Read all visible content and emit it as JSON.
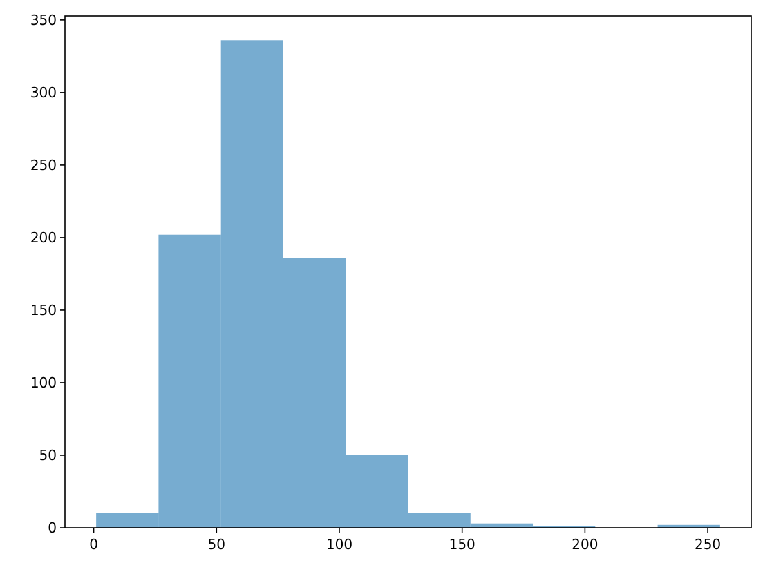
{
  "chart_data": {
    "type": "bar",
    "subtype": "histogram",
    "title": "",
    "xlabel": "",
    "ylabel": "",
    "bins": [
      {
        "start": 1.0,
        "end": 26.4,
        "count": 10
      },
      {
        "start": 26.4,
        "end": 51.8,
        "count": 202
      },
      {
        "start": 51.8,
        "end": 77.2,
        "count": 336
      },
      {
        "start": 77.2,
        "end": 102.6,
        "count": 186
      },
      {
        "start": 102.6,
        "end": 128.0,
        "count": 50
      },
      {
        "start": 128.0,
        "end": 153.4,
        "count": 10
      },
      {
        "start": 153.4,
        "end": 178.8,
        "count": 3
      },
      {
        "start": 178.8,
        "end": 204.2,
        "count": 1
      },
      {
        "start": 204.2,
        "end": 229.6,
        "count": 0
      },
      {
        "start": 229.6,
        "end": 255.0,
        "count": 2
      }
    ],
    "xlim": [
      -11.7,
      267.7
    ],
    "ylim": [
      0,
      352.8
    ],
    "x_ticks": [
      0,
      50,
      100,
      150,
      200,
      250
    ],
    "y_ticks": [
      0,
      50,
      100,
      150,
      200,
      250,
      300,
      350
    ],
    "bar_color": "#77acd0",
    "grid": false,
    "legend": "none"
  }
}
